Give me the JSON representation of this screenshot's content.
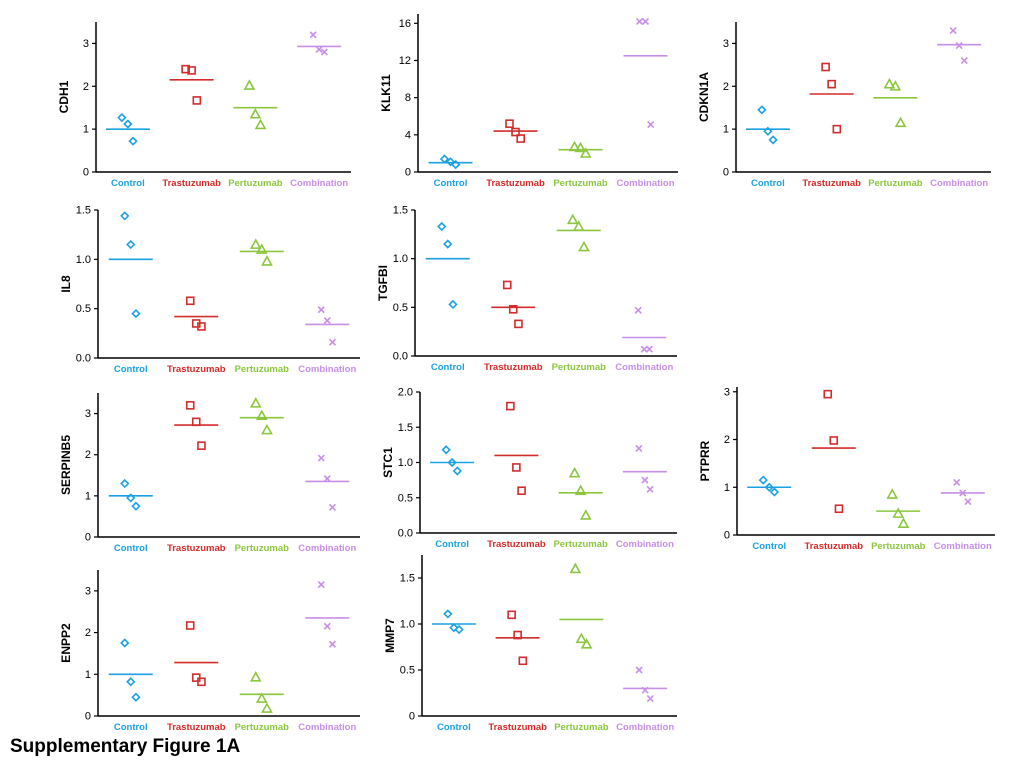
{
  "caption": "Supplementary Figure 1A",
  "groups": [
    "Control",
    "Trastuzumab",
    "Pertuzumab",
    "Combination"
  ],
  "colors": {
    "Control": "#1aa1e2",
    "Trastuzumab": "#d42b2b",
    "Pertuzumab": "#8cc63f",
    "Combination": "#c78fe8"
  },
  "markers": {
    "Control": "diamond",
    "Trastuzumab": "square",
    "Pertuzumab": "triangle",
    "Combination": "cross"
  },
  "chart_data": [
    {
      "type": "scatter",
      "ylabel": "CDH1",
      "ylim": [
        0,
        3.5
      ],
      "yticks": [
        "0",
        "1",
        "2",
        "3"
      ],
      "categories": [
        "Control",
        "Trastuzumab",
        "Pertuzumab",
        "Combination"
      ],
      "series": [
        {
          "points": [
            1.27,
            0.72,
            1.12
          ],
          "mean": 1.0
        },
        {
          "points": [
            2.4,
            1.67,
            2.37
          ],
          "mean": 2.15
        },
        {
          "points": [
            2.02,
            1.1,
            1.35
          ],
          "mean": 1.5
        },
        {
          "points": [
            3.2,
            2.8,
            2.86
          ],
          "mean": 2.93
        }
      ]
    },
    {
      "type": "scatter",
      "ylabel": "KLK11",
      "ylim": [
        0,
        17
      ],
      "yticks": [
        "0",
        "4",
        "8",
        "12",
        "16"
      ],
      "categories": [
        "Control",
        "Trastuzumab",
        "Pertuzumab",
        "Combination"
      ],
      "series": [
        {
          "points": [
            1.4,
            0.8,
            1.1
          ],
          "mean": 1.0
        },
        {
          "points": [
            5.2,
            3.6,
            4.3
          ],
          "mean": 4.4
        },
        {
          "points": [
            2.7,
            2.0,
            2.6
          ],
          "mean": 2.4
        },
        {
          "points": [
            16.2,
            5.1,
            16.2
          ],
          "mean": 12.5
        }
      ]
    },
    {
      "type": "scatter",
      "ylabel": "CDKN1A",
      "ylim": [
        0,
        3.5
      ],
      "yticks": [
        "0",
        "1",
        "2",
        "3"
      ],
      "categories": [
        "Control",
        "Trastuzumab",
        "Pertuzumab",
        "Combination"
      ],
      "series": [
        {
          "points": [
            1.45,
            0.75,
            0.95
          ],
          "mean": 1.0
        },
        {
          "points": [
            2.45,
            1.0,
            2.05
          ],
          "mean": 1.82
        },
        {
          "points": [
            2.05,
            1.15,
            2.0
          ],
          "mean": 1.73
        },
        {
          "points": [
            3.3,
            2.6,
            2.95
          ],
          "mean": 2.97
        }
      ]
    },
    {
      "type": "scatter",
      "ylabel": "IL8",
      "ylim": [
        0,
        1.5
      ],
      "yticks": [
        "0.0",
        "0.5",
        "1.0",
        "1.5"
      ],
      "categories": [
        "Control",
        "Trastuzumab",
        "Pertuzumab",
        "Combination"
      ],
      "series": [
        {
          "points": [
            1.44,
            0.45,
            1.15
          ],
          "mean": 1.0
        },
        {
          "points": [
            0.58,
            0.32,
            0.35
          ],
          "mean": 0.42
        },
        {
          "points": [
            1.15,
            0.98,
            1.1
          ],
          "mean": 1.08
        },
        {
          "points": [
            0.49,
            0.16,
            0.38
          ],
          "mean": 0.34
        }
      ]
    },
    {
      "type": "scatter",
      "ylabel": "TGFBI",
      "ylim": [
        0,
        1.5
      ],
      "yticks": [
        "0.0",
        "0.5",
        "1.0",
        "1.5"
      ],
      "categories": [
        "Control",
        "Trastuzumab",
        "Pertuzumab",
        "Combination"
      ],
      "series": [
        {
          "points": [
            1.33,
            0.53,
            1.15
          ],
          "mean": 1.0
        },
        {
          "points": [
            0.73,
            0.33,
            0.48
          ],
          "mean": 0.5
        },
        {
          "points": [
            1.4,
            1.12,
            1.33
          ],
          "mean": 1.29
        },
        {
          "points": [
            0.47,
            0.07,
            0.07
          ],
          "mean": 0.19
        }
      ]
    },
    {
      "type": "scatter",
      "ylabel": "SERPINB5",
      "ylim": [
        0,
        3.5
      ],
      "yticks": [
        "0",
        "1",
        "2",
        "3"
      ],
      "categories": [
        "Control",
        "Trastuzumab",
        "Pertuzumab",
        "Combination"
      ],
      "series": [
        {
          "points": [
            1.3,
            0.75,
            0.95
          ],
          "mean": 1.0
        },
        {
          "points": [
            3.2,
            2.22,
            2.8
          ],
          "mean": 2.72
        },
        {
          "points": [
            3.25,
            2.6,
            2.95
          ],
          "mean": 2.9
        },
        {
          "points": [
            1.92,
            0.72,
            1.42
          ],
          "mean": 1.35
        }
      ]
    },
    {
      "type": "scatter",
      "ylabel": "STC1",
      "ylim": [
        0,
        2.0
      ],
      "yticks": [
        "0.0",
        "0.5",
        "1.0",
        "1.5",
        "2.0"
      ],
      "categories": [
        "Control",
        "Trastuzumab",
        "Pertuzumab",
        "Combination"
      ],
      "series": [
        {
          "points": [
            1.18,
            0.88,
            1.0
          ],
          "mean": 1.0
        },
        {
          "points": [
            1.8,
            0.6,
            0.93
          ],
          "mean": 1.1
        },
        {
          "points": [
            0.85,
            0.25,
            0.6
          ],
          "mean": 0.57
        },
        {
          "points": [
            1.2,
            0.62,
            0.75
          ],
          "mean": 0.87
        }
      ]
    },
    {
      "type": "scatter",
      "ylabel": "PTPRR",
      "ylim": [
        0,
        3.1
      ],
      "yticks": [
        "0",
        "1",
        "2",
        "3"
      ],
      "categories": [
        "Control",
        "Trastuzumab",
        "Pertuzumab",
        "Combination"
      ],
      "series": [
        {
          "points": [
            1.15,
            0.9,
            1.0
          ],
          "mean": 1.0
        },
        {
          "points": [
            2.95,
            0.55,
            1.98
          ],
          "mean": 1.82
        },
        {
          "points": [
            0.85,
            0.24,
            0.45
          ],
          "mean": 0.5
        },
        {
          "points": [
            1.1,
            0.7,
            0.88
          ],
          "mean": 0.88
        }
      ]
    },
    {
      "type": "scatter",
      "ylabel": "ENPP2",
      "ylim": [
        0,
        3.5
      ],
      "yticks": [
        "0",
        "1",
        "2",
        "3"
      ],
      "categories": [
        "Control",
        "Trastuzumab",
        "Pertuzumab",
        "Combination"
      ],
      "series": [
        {
          "points": [
            1.75,
            0.45,
            0.82
          ],
          "mean": 1.0
        },
        {
          "points": [
            2.17,
            0.82,
            0.92
          ],
          "mean": 1.28
        },
        {
          "points": [
            0.93,
            0.18,
            0.42
          ],
          "mean": 0.52
        },
        {
          "points": [
            3.15,
            1.72,
            2.15
          ],
          "mean": 2.35
        }
      ]
    },
    {
      "type": "scatter",
      "ylabel": "MMP7",
      "ylim": [
        0,
        1.75
      ],
      "yticks": [
        "0",
        "0.5",
        "1.0",
        "1.5"
      ],
      "categories": [
        "Control",
        "Trastuzumab",
        "Pertuzumab",
        "Combination"
      ],
      "series": [
        {
          "points": [
            1.11,
            0.94,
            0.96
          ],
          "mean": 1.0
        },
        {
          "points": [
            1.1,
            0.6,
            0.88
          ],
          "mean": 0.85
        },
        {
          "points": [
            1.6,
            0.78,
            0.84
          ],
          "mean": 1.05
        },
        {
          "points": [
            0.5,
            0.19,
            0.28
          ],
          "mean": 0.3
        }
      ]
    }
  ]
}
